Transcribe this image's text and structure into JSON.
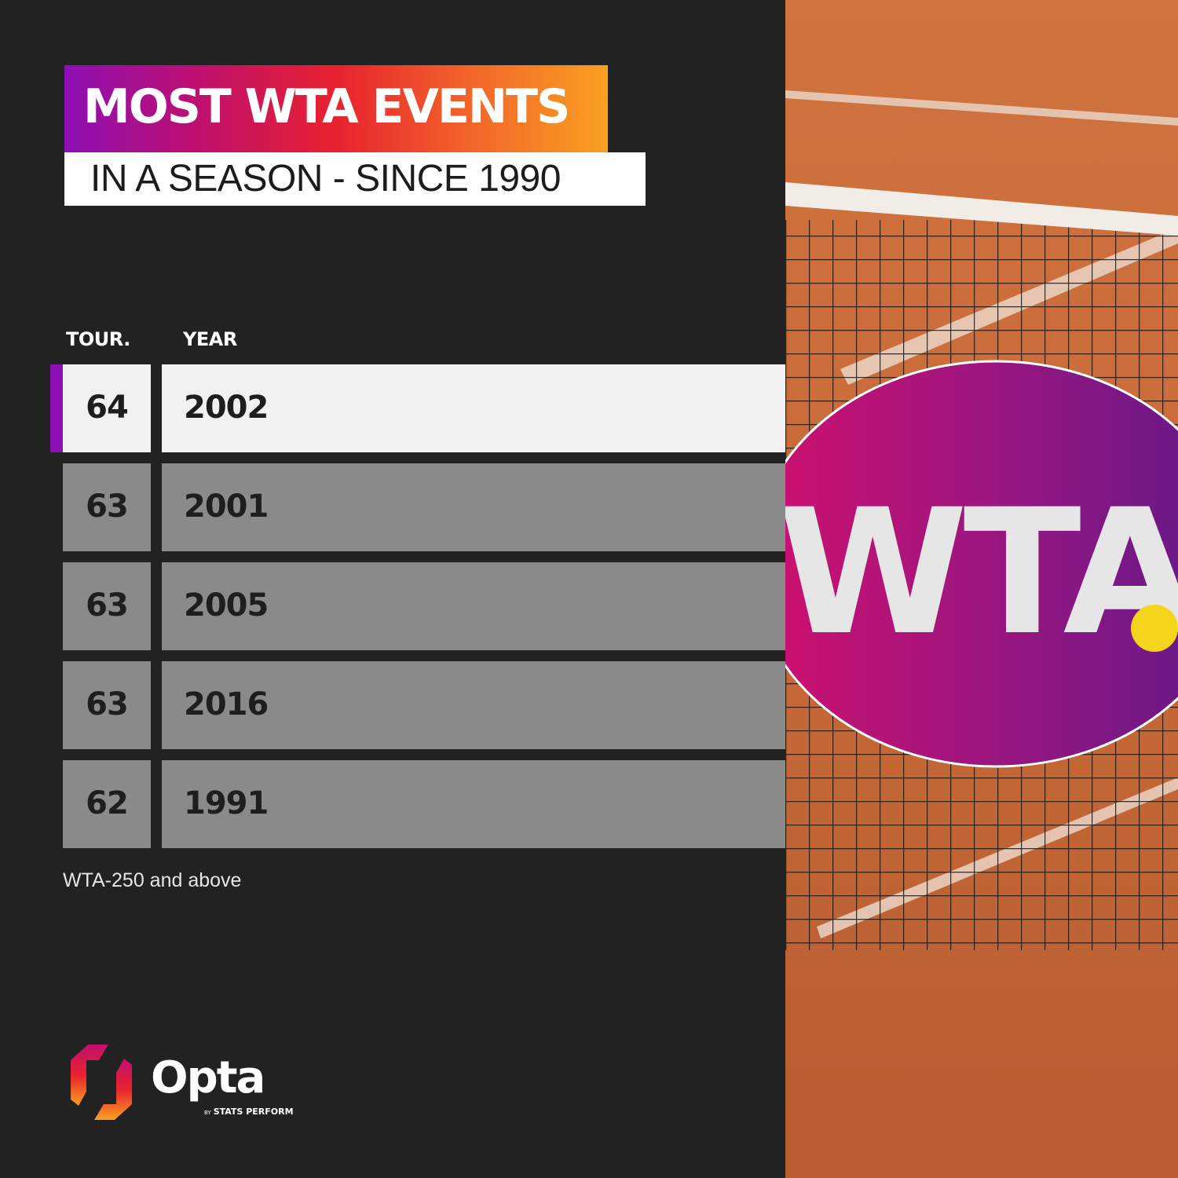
{
  "header": {
    "title": "MOST WTA EVENTS",
    "subtitle": "IN A SEASON - SINCE 1990"
  },
  "columns": {
    "tour": "TOUR.",
    "year": "YEAR"
  },
  "footnote": "WTA-250 and above",
  "logo": {
    "wordmark": "Opta",
    "by": "BY",
    "tagline": "STATS PERFORM"
  },
  "photo": {
    "sign_text": "WTA"
  },
  "colors": {
    "background": "#222222",
    "highlight_row": "#f1f1f1",
    "row": "#8a8a8a",
    "accent": "#8d0fb4",
    "gradient": [
      "#8d0fb4",
      "#c0106e",
      "#e8222e",
      "#f2662a",
      "#f8a020"
    ]
  },
  "chart_data": {
    "type": "table",
    "title": "MOST WTA EVENTS",
    "subtitle": "IN A SEASON - SINCE 1990",
    "columns": [
      "TOUR.",
      "YEAR"
    ],
    "rows": [
      {
        "tour": "64",
        "year": "2002",
        "highlight": true
      },
      {
        "tour": "63",
        "year": "2001"
      },
      {
        "tour": "63",
        "year": "2005"
      },
      {
        "tour": "63",
        "year": "2016"
      },
      {
        "tour": "62",
        "year": "1991"
      }
    ],
    "note": "WTA-250 and above"
  }
}
